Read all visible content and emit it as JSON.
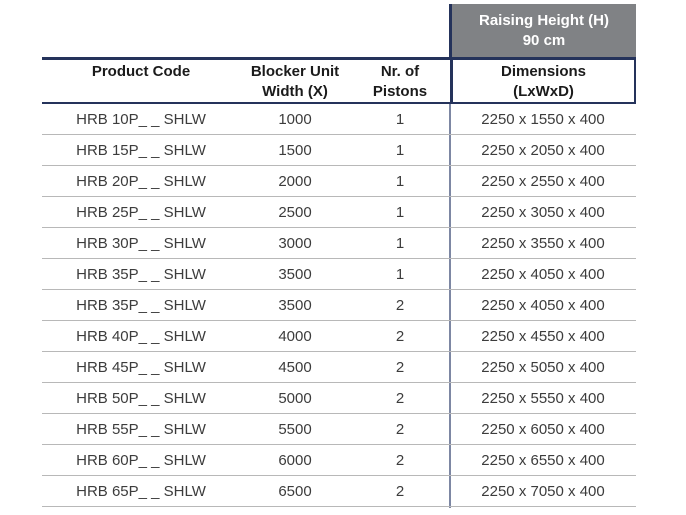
{
  "raising_header": {
    "line1": "Raising Height (H)",
    "line2": "90 cm"
  },
  "columns": [
    {
      "line1": "Product Code",
      "line2": ""
    },
    {
      "line1": "Blocker Unit",
      "line2": "Width (X)"
    },
    {
      "line1": "Nr. of",
      "line2": "Pistons"
    },
    {
      "line1": "Dimensions",
      "line2": "(LxWxD)"
    }
  ],
  "row_fields": [
    "product_code",
    "blocker_unit_width",
    "nr_of_pistons",
    "dimensions"
  ],
  "rows": [
    {
      "product_code": "HRB 10P_ _ SHLW",
      "blocker_unit_width": "1000",
      "nr_of_pistons": "1",
      "dimensions": "2250 x 1550 x 400"
    },
    {
      "product_code": "HRB 15P_ _ SHLW",
      "blocker_unit_width": "1500",
      "nr_of_pistons": "1",
      "dimensions": "2250 x 2050 x 400"
    },
    {
      "product_code": "HRB 20P_ _ SHLW",
      "blocker_unit_width": "2000",
      "nr_of_pistons": "1",
      "dimensions": "2250 x 2550 x 400"
    },
    {
      "product_code": "HRB 25P_ _ SHLW",
      "blocker_unit_width": "2500",
      "nr_of_pistons": "1",
      "dimensions": "2250 x 3050 x 400"
    },
    {
      "product_code": "HRB 30P_ _ SHLW",
      "blocker_unit_width": "3000",
      "nr_of_pistons": "1",
      "dimensions": "2250 x 3550 x 400"
    },
    {
      "product_code": "HRB 35P_ _ SHLW",
      "blocker_unit_width": "3500",
      "nr_of_pistons": "1",
      "dimensions": "2250 x 4050 x 400"
    },
    {
      "product_code": "HRB 35P_ _ SHLW",
      "blocker_unit_width": "3500",
      "nr_of_pistons": "2",
      "dimensions": "2250 x 4050 x 400"
    },
    {
      "product_code": "HRB 40P_ _ SHLW",
      "blocker_unit_width": "4000",
      "nr_of_pistons": "2",
      "dimensions": "2250 x 4550 x 400"
    },
    {
      "product_code": "HRB 45P_ _ SHLW",
      "blocker_unit_width": "4500",
      "nr_of_pistons": "2",
      "dimensions": "2250 x 5050 x 400"
    },
    {
      "product_code": "HRB 50P_ _ SHLW",
      "blocker_unit_width": "5000",
      "nr_of_pistons": "2",
      "dimensions": "2250 x 5550 x 400"
    },
    {
      "product_code": "HRB 55P_ _ SHLW",
      "blocker_unit_width": "5500",
      "nr_of_pistons": "2",
      "dimensions": "2250 x 6050 x 400"
    },
    {
      "product_code": "HRB 60P_ _ SHLW",
      "blocker_unit_width": "6000",
      "nr_of_pistons": "2",
      "dimensions": "2250 x 6550 x 400"
    },
    {
      "product_code": "HRB 65P_ _ SHLW",
      "blocker_unit_width": "6500",
      "nr_of_pistons": "2",
      "dimensions": "2250 x 7050 x 400"
    }
  ],
  "colors": {
    "accent_navy": "#25335b",
    "banner_gray": "#808285",
    "row_divider": "#b8b8b8",
    "body_text": "#3c3c3c",
    "banner_text": "#ffffff"
  }
}
